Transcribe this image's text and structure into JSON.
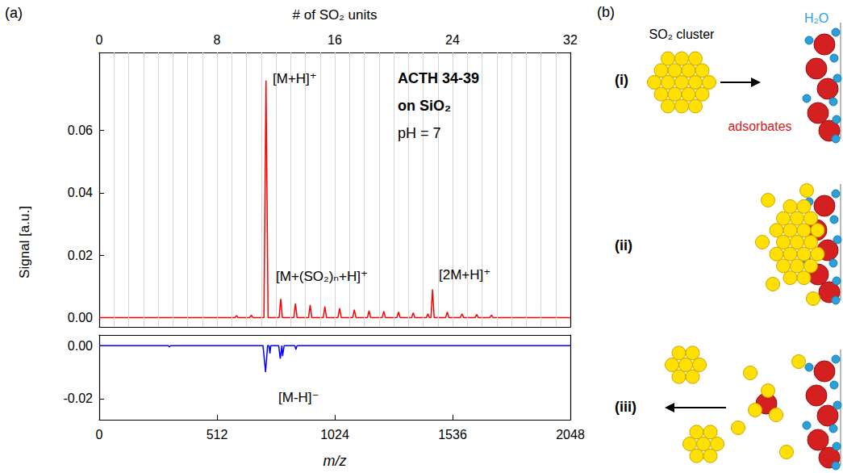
{
  "chart_data": [
    {
      "type": "line",
      "label": "(a)",
      "y_label": "Signal [a.u.]",
      "x2_label": "# of SO₂ units",
      "xlim": [
        0,
        2048
      ],
      "x2lim": [
        0,
        32
      ],
      "x2ticks": [
        0,
        8,
        16,
        24,
        32
      ],
      "grid": true,
      "x2grid": [
        1,
        2,
        3,
        4,
        5,
        6,
        7,
        8,
        9,
        10,
        11,
        12,
        13,
        14,
        15,
        16,
        17,
        18,
        19,
        20,
        21,
        22,
        23,
        24,
        25,
        26,
        27,
        28,
        29,
        30,
        31
      ],
      "ylim": [
        -0.003,
        0.085
      ],
      "yticks": [
        {
          "value": 0,
          "label": "0.00"
        },
        {
          "value": 0.02,
          "label": "0.02"
        },
        {
          "value": 0.04,
          "label": "0.04"
        },
        {
          "value": 0.06,
          "label": "0.06"
        }
      ],
      "texts": [
        "ACTH 34-39",
        "on SiO₂",
        "pH = 7"
      ],
      "annotations": [
        "[M+H]⁺",
        "[M+(SO₂)ₙ+H]⁺",
        "[2M+H]⁺"
      ],
      "series": [
        {
          "color": "#ff0000",
          "x": [
            0,
            590,
            597,
            604,
            654,
            661,
            668,
            716,
            725,
            734,
            782,
            789,
            796,
            846,
            853,
            860,
            910,
            917,
            924,
            974,
            981,
            988,
            1038,
            1045,
            1052,
            1102,
            1109,
            1116,
            1166,
            1173,
            1180,
            1230,
            1237,
            1244,
            1294,
            1301,
            1308,
            1358,
            1365,
            1372,
            1422,
            1429,
            1435,
            1442,
            1449,
            1456,
            1506,
            1513,
            1520,
            1570,
            1577,
            1584,
            1634,
            1641,
            1648,
            1698,
            1705,
            1712,
            2048
          ],
          "values": [
            0,
            0,
            0.0006,
            0,
            0,
            0.0008,
            0,
            0,
            0.076,
            0,
            0,
            0.006,
            0,
            0,
            0.0045,
            0,
            0,
            0.004,
            0,
            0,
            0.0035,
            0,
            0,
            0.003,
            0,
            0,
            0.0025,
            0,
            0,
            0.0022,
            0,
            0,
            0.002,
            0,
            0,
            0.0018,
            0,
            0,
            0.0015,
            0,
            0,
            0.0012,
            0,
            0,
            0.009,
            0,
            0,
            0.0018,
            0,
            0,
            0.0012,
            0,
            0,
            0.001,
            0,
            0,
            0.0008,
            0,
            0
          ]
        }
      ]
    },
    {
      "type": "line",
      "x_label": "m/z",
      "xlim": [
        0,
        2048
      ],
      "xticks": [
        0,
        512,
        1024,
        1536,
        2048
      ],
      "grid": false,
      "ylim": [
        -0.028,
        0.004
      ],
      "yticks": [
        {
          "value": 0,
          "label": "0.00"
        },
        {
          "value": -0.02,
          "label": "-0.02"
        }
      ],
      "annotations": [
        "[M-H]⁻"
      ],
      "series": [
        {
          "color": "#0000ff",
          "x": [
            0,
            300,
            305,
            310,
            712,
            723,
            732,
            738,
            742,
            746,
            780,
            787,
            794,
            797,
            804,
            850,
            855,
            860,
            2048
          ],
          "values": [
            0,
            0,
            -0.0005,
            0,
            0,
            -0.01,
            0,
            0,
            -0.003,
            0,
            0,
            -0.005,
            0,
            -0.004,
            0,
            0,
            -0.0015,
            0,
            0
          ]
        }
      ]
    }
  ],
  "diagram": {
    "label": "(b)",
    "steps": [
      "(i)",
      "(ii)",
      "(iii)"
    ],
    "labels": {
      "cluster": "SO₂ cluster",
      "water": "H₂O",
      "adsorbates": "adsorbates"
    }
  }
}
